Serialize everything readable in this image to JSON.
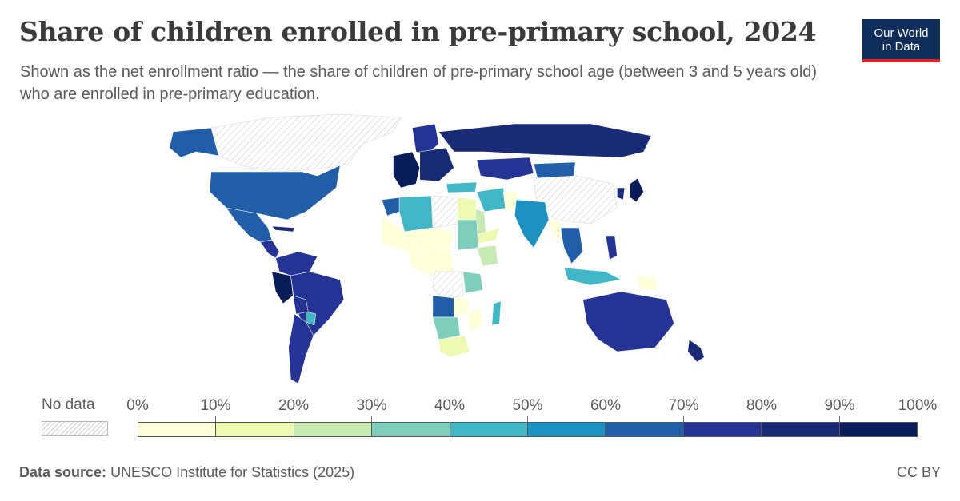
{
  "header": {
    "title": "Share of children enrolled in pre-primary school, 2024",
    "subtitle": "Shown as the net enrollment ratio — the share of children of pre-primary school age (between 3 and 5 years old) who are enrolled in pre-primary education.",
    "logo_line1": "Our World",
    "logo_line2": "in Data"
  },
  "legend": {
    "no_data_label": "No data",
    "ticks": [
      "0%",
      "10%",
      "20%",
      "30%",
      "40%",
      "50%",
      "60%",
      "70%",
      "80%",
      "90%",
      "100%"
    ],
    "bin_colors": [
      "#ffffd9",
      "#edf8b1",
      "#c7e9b4",
      "#7fcdbb",
      "#41b6c4",
      "#1d91c0",
      "#225ea8",
      "#253494",
      "#192a76",
      "#081d58"
    ]
  },
  "footer": {
    "source_label": "Data source:",
    "source_text": "UNESCO Institute for Statistics (2025)",
    "license": "CC BY"
  },
  "map_regions": [
    {
      "name": "Canada/Greenland",
      "category": "no-data"
    },
    {
      "name": "Alaska",
      "category": 7
    },
    {
      "name": "United States",
      "category": 7
    },
    {
      "name": "Mexico",
      "category": 7
    },
    {
      "name": "Central America",
      "category": 8
    },
    {
      "name": "Cuba",
      "category": 9
    },
    {
      "name": "Colombia/Venezuela",
      "category": 8
    },
    {
      "name": "Peru",
      "category": 10
    },
    {
      "name": "Brazil",
      "category": 8
    },
    {
      "name": "Bolivia",
      "category": 8
    },
    {
      "name": "Paraguay",
      "category": 5
    },
    {
      "name": "Argentina/Chile",
      "category": 8
    },
    {
      "name": "Western Europe",
      "category": 10
    },
    {
      "name": "Scandinavia",
      "category": 8
    },
    {
      "name": "Eastern Europe",
      "category": 9
    },
    {
      "name": "Russia",
      "category": 9
    },
    {
      "name": "Kazakhstan",
      "category": 8
    },
    {
      "name": "Mongolia",
      "category": 7
    },
    {
      "name": "China",
      "category": "no-data"
    },
    {
      "name": "Japan",
      "category": 10
    },
    {
      "name": "Korea",
      "category": 9
    },
    {
      "name": "Turkey",
      "category": 5
    },
    {
      "name": "Iran",
      "category": 5
    },
    {
      "name": "Saudi Arabia",
      "category": 3
    },
    {
      "name": "Yemen/Oman",
      "category": 2
    },
    {
      "name": "Pakistan",
      "category": 1
    },
    {
      "name": "India",
      "category": 6
    },
    {
      "name": "Southeast Asia",
      "category": 7
    },
    {
      "name": "Myanmar",
      "category": 1
    },
    {
      "name": "Indonesia",
      "category": 5
    },
    {
      "name": "Philippines",
      "category": 8
    },
    {
      "name": "Papua New Guinea",
      "category": 1
    },
    {
      "name": "Australia",
      "category": 8
    },
    {
      "name": "New Zealand",
      "category": 9
    },
    {
      "name": "Morocco",
      "category": 7
    },
    {
      "name": "Algeria",
      "category": 5
    },
    {
      "name": "Libya",
      "category": "no-data"
    },
    {
      "name": "Egypt",
      "category": 2
    },
    {
      "name": "Sahel",
      "category": 1
    },
    {
      "name": "Sudan",
      "category": 4
    },
    {
      "name": "Ethiopia",
      "category": 3
    },
    {
      "name": "Central Africa",
      "category": 1
    },
    {
      "name": "DR Congo",
      "category": "no-data"
    },
    {
      "name": "Tanzania",
      "category": 4
    },
    {
      "name": "Angola",
      "category": 7
    },
    {
      "name": "Zambia",
      "category": 1
    },
    {
      "name": "Namibia/Botswana",
      "category": 4
    },
    {
      "name": "South Africa",
      "category": 2
    },
    {
      "name": "Madagascar",
      "category": 5
    },
    {
      "name": "Mozambique",
      "category": 1
    }
  ]
}
